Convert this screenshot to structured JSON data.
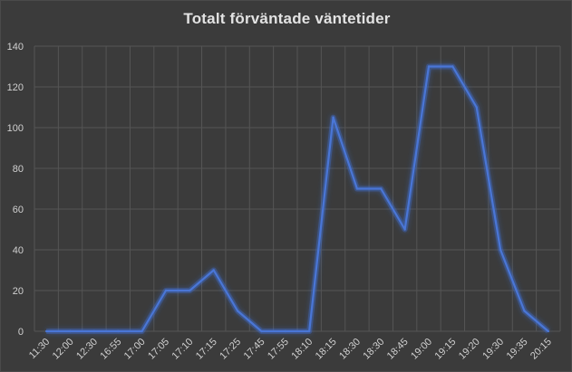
{
  "chart_data": {
    "type": "line",
    "title": "Totalt förväntade väntetider",
    "xlabel": "",
    "ylabel": "",
    "categories": [
      "11:30",
      "12:00",
      "12:30",
      "16:55",
      "17:00",
      "17:05",
      "17:10",
      "17:15",
      "17:25",
      "17:45",
      "17:55",
      "18:10",
      "18:15",
      "18:30",
      "18:30",
      "18:45",
      "19:00",
      "19:15",
      "19:20",
      "19:30",
      "19:35",
      "20:15"
    ],
    "series": [
      {
        "values": [
          0,
          0,
          0,
          0,
          0,
          20,
          20,
          30,
          10,
          0,
          0,
          0,
          105,
          70,
          70,
          50,
          130,
          130,
          110,
          40,
          10,
          0
        ]
      }
    ],
    "ylim": [
      0,
      140
    ],
    "yticks": [
      0,
      20,
      40,
      60,
      80,
      100,
      120,
      140
    ],
    "grid": true,
    "legend": "none",
    "colors": {
      "background": "#3b3b3b",
      "grid": "#555555",
      "line": "#4a76d6",
      "glow": "#3f6fd8",
      "text": "#d0d0d0",
      "title": "#e3e3e3"
    }
  }
}
